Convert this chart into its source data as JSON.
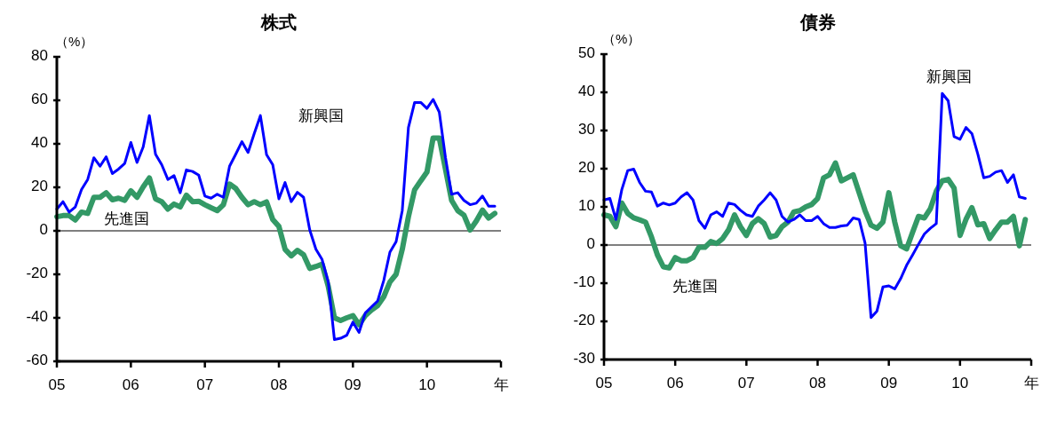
{
  "chart_data": [
    {
      "type": "line",
      "title": "株式",
      "ylabel": "（%）",
      "xlim": [
        "2005-01",
        "2011-01"
      ],
      "x": [
        "2005-01",
        "2005-02",
        "2005-03",
        "2005-04",
        "2005-05",
        "2005-06",
        "2005-07",
        "2005-08",
        "2005-09",
        "2005-10",
        "2005-11",
        "2005-12",
        "2006-01",
        "2006-02",
        "2006-03",
        "2006-04",
        "2006-05",
        "2006-06",
        "2006-07",
        "2006-08",
        "2006-09",
        "2006-10",
        "2006-11",
        "2006-12",
        "2007-01",
        "2007-02",
        "2007-03",
        "2007-04",
        "2007-05",
        "2007-06",
        "2007-07",
        "2007-08",
        "2007-09",
        "2007-10",
        "2007-11",
        "2007-12",
        "2008-01",
        "2008-02",
        "2008-03",
        "2008-04",
        "2008-05",
        "2008-06",
        "2008-07",
        "2008-08",
        "2008-09",
        "2008-10",
        "2008-11",
        "2008-12",
        "2009-01",
        "2009-02",
        "2009-03",
        "2009-04",
        "2009-05",
        "2009-06",
        "2009-07",
        "2009-08",
        "2009-09",
        "2009-10",
        "2009-11",
        "2009-12",
        "2010-01",
        "2010-02",
        "2010-03",
        "2010-04",
        "2010-05",
        "2010-06",
        "2010-07",
        "2010-08",
        "2010-09",
        "2010-10",
        "2010-11",
        "2010-12"
      ],
      "xticks": [
        {
          "value": "2005-01",
          "label": "05"
        },
        {
          "value": "2006-01",
          "label": "06"
        },
        {
          "value": "2007-01",
          "label": "07"
        },
        {
          "value": "2008-01",
          "label": "08"
        },
        {
          "value": "2009-01",
          "label": "09"
        },
        {
          "value": "2010-01",
          "label": "10"
        },
        {
          "value": "2011-01",
          "label": "年"
        }
      ],
      "ylim": [
        -60,
        80
      ],
      "yticks": [
        -60,
        -40,
        -20,
        0,
        20,
        40,
        60,
        80
      ],
      "grid": false,
      "legend": false,
      "ref_lines": [
        {
          "axis": "y",
          "value": 0,
          "color": "#000000"
        }
      ],
      "series": [
        {
          "name": "先進国",
          "color": "#339966",
          "values": [
            6.5,
            7,
            7,
            5,
            8.6,
            8,
            15.4,
            15.4,
            17.5,
            14.3,
            15,
            14,
            18.4,
            15.4,
            20.2,
            24.3,
            14.7,
            13.4,
            10,
            12.3,
            11,
            16.4,
            13.4,
            13.6,
            12,
            10.6,
            9.3,
            12,
            21.5,
            19.5,
            15.4,
            12,
            13.4,
            12,
            13.3,
            5.2,
            2,
            -8.5,
            -11.5,
            -9,
            -11,
            -17.3,
            -16.4,
            -15.3,
            -25.5,
            -40,
            -41.2,
            -40,
            -39,
            -43.2,
            -39,
            -36.4,
            -34.4,
            -30.3,
            -23.5,
            -20,
            -8.5,
            6.5,
            18.8,
            23,
            27,
            42.7,
            42.7,
            28.4,
            14,
            9.3,
            7.2,
            0.4,
            4.5,
            9.5,
            5.9,
            8
          ]
        },
        {
          "name": "新興国",
          "color": "#0000ff",
          "values": [
            10,
            13.4,
            8.6,
            11,
            19,
            23.6,
            33.6,
            29.7,
            34,
            26.3,
            28.4,
            31,
            40.6,
            31.4,
            38.6,
            53,
            35.2,
            30.4,
            23.6,
            25.4,
            17.5,
            28,
            27.3,
            25.6,
            16,
            15,
            16.8,
            15.4,
            29.7,
            35.2,
            41,
            36,
            44.7,
            53,
            35,
            30.4,
            14.7,
            22.2,
            13.4,
            17.7,
            15.4,
            0.4,
            -8.5,
            -13.2,
            -23.5,
            -50,
            -49.4,
            -48,
            -42,
            -46.7,
            -37.8,
            -35,
            -32.3,
            -22.8,
            -9.8,
            -5,
            9.3,
            47.5,
            59,
            59,
            56.3,
            60.4,
            54.6,
            33.8,
            16.8,
            17.5,
            14,
            12,
            12.7,
            16,
            11.3,
            11.3
          ]
        }
      ]
    },
    {
      "type": "line",
      "title": "債券",
      "ylabel": "（%）",
      "xlim": [
        "2005-01",
        "2011-01"
      ],
      "x": [
        "2005-01",
        "2005-02",
        "2005-03",
        "2005-04",
        "2005-05",
        "2005-06",
        "2005-07",
        "2005-08",
        "2005-09",
        "2005-10",
        "2005-11",
        "2005-12",
        "2006-01",
        "2006-02",
        "2006-03",
        "2006-04",
        "2006-05",
        "2006-06",
        "2006-07",
        "2006-08",
        "2006-09",
        "2006-10",
        "2006-11",
        "2006-12",
        "2007-01",
        "2007-02",
        "2007-03",
        "2007-04",
        "2007-05",
        "2007-06",
        "2007-07",
        "2007-08",
        "2007-09",
        "2007-10",
        "2007-11",
        "2007-12",
        "2008-01",
        "2008-02",
        "2008-03",
        "2008-04",
        "2008-05",
        "2008-06",
        "2008-07",
        "2008-08",
        "2008-09",
        "2008-10",
        "2008-11",
        "2008-12",
        "2009-01",
        "2009-02",
        "2009-03",
        "2009-04",
        "2009-05",
        "2009-06",
        "2009-07",
        "2009-08",
        "2009-09",
        "2009-10",
        "2009-11",
        "2009-12",
        "2010-01",
        "2010-02",
        "2010-03",
        "2010-04",
        "2010-05",
        "2010-06",
        "2010-07",
        "2010-08",
        "2010-09",
        "2010-10",
        "2010-11",
        "2010-12"
      ],
      "xticks": [
        {
          "value": "2005-01",
          "label": "05"
        },
        {
          "value": "2006-01",
          "label": "06"
        },
        {
          "value": "2007-01",
          "label": "07"
        },
        {
          "value": "2008-01",
          "label": "08"
        },
        {
          "value": "2009-01",
          "label": "09"
        },
        {
          "value": "2010-01",
          "label": "10"
        },
        {
          "value": "2011-01",
          "label": "年"
        }
      ],
      "ylim": [
        -30,
        50
      ],
      "yticks": [
        -30,
        -20,
        -10,
        0,
        10,
        20,
        30,
        40,
        50
      ],
      "grid": false,
      "legend": false,
      "ref_lines": [
        {
          "axis": "y",
          "value": 0,
          "color": "#000000"
        }
      ],
      "series": [
        {
          "name": "先進国",
          "color": "#339966",
          "values": [
            7.9,
            7.5,
            4.8,
            11,
            8.3,
            7.1,
            6.6,
            6,
            2.1,
            -2.6,
            -5.7,
            -6,
            -3.3,
            -4.1,
            -4.1,
            -3.3,
            -0.6,
            -0.6,
            0.9,
            0.4,
            1.7,
            4,
            7.9,
            4.8,
            2.5,
            5.6,
            6.9,
            5.6,
            2.1,
            2.5,
            4.8,
            6,
            8.7,
            9,
            10,
            10.6,
            12.2,
            17.6,
            18.4,
            21.5,
            16.8,
            17.6,
            18.4,
            13.7,
            9,
            5.2,
            4.4,
            6,
            13.7,
            6,
            -0.2,
            -1,
            3.3,
            7.5,
            7.1,
            9.5,
            14.1,
            16.8,
            17.2,
            14.9,
            2.5,
            6.7,
            9.8,
            5.3,
            5.6,
            1.7,
            4,
            6,
            6,
            7.5,
            -0.2,
            6.7
          ]
        },
        {
          "name": "新興国",
          "color": "#0000ff",
          "values": [
            11.8,
            12.2,
            6.7,
            14.5,
            19.5,
            19.9,
            16.4,
            14.1,
            13.9,
            10.2,
            11,
            10.5,
            11,
            12.6,
            13.7,
            11.8,
            6.4,
            4.4,
            7.9,
            8.7,
            7.5,
            11,
            10.6,
            9.1,
            7.9,
            7.5,
            10.2,
            11.8,
            13.7,
            11.8,
            7.5,
            6,
            6.7,
            7.9,
            6.4,
            6.4,
            7.5,
            5.6,
            4.6,
            4.6,
            5,
            5.2,
            7.1,
            6.7,
            0.5,
            -19,
            -17.3,
            -11,
            -10.7,
            -11.5,
            -8.8,
            -5.3,
            -2.6,
            0.2,
            2.9,
            4.4,
            5.6,
            39.7,
            37.8,
            28.4,
            27.7,
            30.8,
            29.2,
            23.8,
            17.6,
            18,
            19.1,
            19.5,
            16.4,
            18.4,
            12.6,
            12.2
          ]
        }
      ]
    }
  ]
}
